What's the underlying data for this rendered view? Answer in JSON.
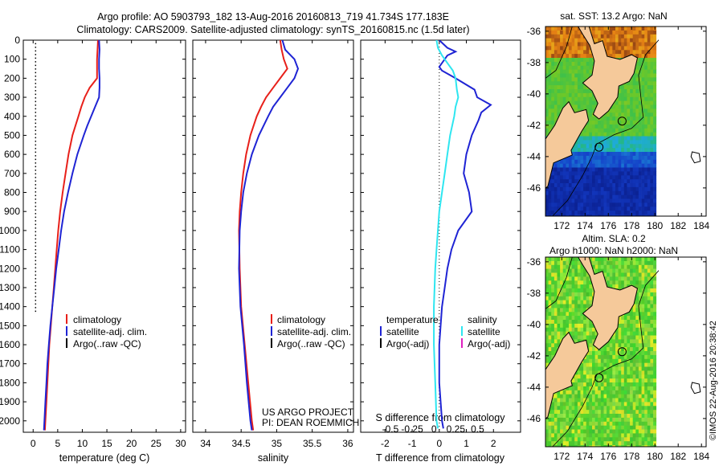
{
  "header": {
    "line1": "Argo profile: AO 5903793_182 13-Aug-2016 20160813_719 41.734S 177.183E",
    "line2": "Climatology: CARS2009. Satellite-adjusted climatology: synTS_20160815.nc (1.5d later)"
  },
  "colors": {
    "climatology": "#e8201a",
    "satellite": "#1f24d4",
    "argo": "#000000",
    "satellite_s": "#2ee6f0",
    "argo_adj_s": "#e020c0"
  },
  "chart_data": [
    {
      "id": "temperature",
      "type": "line",
      "xlabel": "temperature (deg C)",
      "ylabel": "",
      "xlim": [
        -2,
        31
      ],
      "ylim": [
        2060,
        0
      ],
      "xticks": [
        0,
        5,
        10,
        15,
        20,
        25,
        30
      ],
      "yticks": [
        0,
        100,
        200,
        300,
        400,
        500,
        600,
        700,
        800,
        900,
        1000,
        1100,
        1200,
        1300,
        1400,
        1500,
        1600,
        1700,
        1800,
        1900,
        2000
      ],
      "legend": [
        "climatology",
        "satellite-adj. clim.",
        "Argo(..raw -QC)"
      ],
      "series": [
        {
          "name": "climatology",
          "color": "#e8201a",
          "depth": [
            0,
            50,
            100,
            150,
            200,
            250,
            300,
            350,
            400,
            450,
            500,
            600,
            700,
            800,
            900,
            1000,
            1100,
            1200,
            1300,
            1400,
            1500,
            1600,
            1700,
            1800,
            1900,
            2000,
            2050
          ],
          "values": [
            13.2,
            13.1,
            13.0,
            13.0,
            13.0,
            11.5,
            10.5,
            9.8,
            9.2,
            8.6,
            8.0,
            7.2,
            6.6,
            6.0,
            5.5,
            5.1,
            4.8,
            4.5,
            4.2,
            3.9,
            3.6,
            3.3,
            3.1,
            2.9,
            2.7,
            2.5,
            2.4
          ]
        },
        {
          "name": "satellite-adj. clim.",
          "color": "#1f24d4",
          "depth": [
            0,
            50,
            100,
            150,
            200,
            250,
            300,
            350,
            400,
            450,
            500,
            600,
            700,
            800,
            900,
            1000,
            1100,
            1200,
            1300,
            1400,
            1500,
            1600,
            1700,
            1800,
            1900,
            2000,
            2050
          ],
          "values": [
            13.4,
            13.5,
            13.4,
            13.4,
            13.5,
            13.5,
            13.4,
            12.6,
            11.8,
            11.0,
            10.3,
            9.0,
            8.0,
            7.1,
            6.3,
            5.7,
            5.2,
            4.7,
            4.3,
            3.9,
            3.5,
            3.2,
            2.9,
            2.7,
            2.5,
            2.3,
            2.2
          ]
        },
        {
          "name": "Argo(..raw -QC)",
          "color": "#000000",
          "style": "dotted",
          "depth": [
            15,
            1440
          ],
          "values": [
            0.5,
            0.5
          ]
        }
      ]
    },
    {
      "id": "salinity",
      "type": "line",
      "xlabel": "salinity",
      "ylabel": "",
      "xlim": [
        33.82,
        36.08
      ],
      "ylim": [
        2060,
        0
      ],
      "xticks": [
        34,
        34.5,
        35,
        35.5,
        36
      ],
      "legend": [
        "climatology",
        "satellite-adj. clim.",
        "Argo(..raw -QC)"
      ],
      "annotations": [
        "US ARGO PROJECT",
        "PI: DEAN ROEMMICH"
      ],
      "series": [
        {
          "name": "climatology",
          "color": "#e8201a",
          "depth": [
            0,
            50,
            100,
            150,
            200,
            250,
            300,
            350,
            400,
            500,
            600,
            700,
            800,
            900,
            1000,
            1200,
            1400,
            1600,
            1800,
            2000,
            2050
          ],
          "values": [
            35.05,
            35.07,
            35.1,
            35.15,
            35.05,
            34.95,
            34.85,
            34.78,
            34.72,
            34.63,
            34.57,
            34.53,
            34.5,
            34.48,
            34.47,
            34.48,
            34.5,
            34.55,
            34.6,
            34.65,
            34.67
          ]
        },
        {
          "name": "satellite-adj. clim.",
          "color": "#1f24d4",
          "depth": [
            0,
            50,
            100,
            150,
            200,
            250,
            300,
            350,
            400,
            500,
            600,
            700,
            800,
            900,
            1000,
            1200,
            1400,
            1600,
            1800,
            2000,
            2050
          ],
          "values": [
            35.08,
            35.12,
            35.25,
            35.3,
            35.25,
            35.15,
            35.05,
            34.95,
            34.88,
            34.75,
            34.65,
            34.58,
            34.53,
            34.5,
            34.48,
            34.47,
            34.49,
            34.54,
            34.58,
            34.63,
            34.65
          ]
        }
      ]
    },
    {
      "id": "difference",
      "type": "line",
      "xlabel": "T difference from climatology",
      "ylabel": "",
      "top_axis_label": "S difference from climatology",
      "xlim": [
        -2.9,
        3.0
      ],
      "ylim": [
        2060,
        0
      ],
      "xticks": [
        -2,
        -1,
        0,
        1,
        2
      ],
      "top_ticks": [
        {
          "value": -0.5,
          "label": "-0.5"
        },
        {
          "value": -0.25,
          "label": "-0.25"
        },
        {
          "value": 0,
          "label": "0"
        },
        {
          "value": 0.25,
          "label": "0.25"
        },
        {
          "value": 0.5,
          "label": "0.5"
        }
      ],
      "legend_left_title": "temperature",
      "legend_right_title": "salinity",
      "legend_left": [
        "satellite",
        "Argo(-adj)"
      ],
      "legend_right": [
        "satellite",
        "Argo(-adj)"
      ],
      "series": [
        {
          "name": "satellite",
          "quantity": "temperature",
          "color": "#1f24d4",
          "depth": [
            0,
            40,
            60,
            80,
            100,
            140,
            160,
            200,
            260,
            300,
            340,
            380,
            420,
            500,
            600,
            700,
            800,
            900,
            1000,
            1100,
            1200,
            1300,
            1400,
            1500,
            1600,
            1700,
            1800,
            1900,
            2000,
            2040
          ],
          "values": [
            0.0,
            0.3,
            0.6,
            0.3,
            0.2,
            0.0,
            0.1,
            0.6,
            1.3,
            1.4,
            1.9,
            1.55,
            1.45,
            1.2,
            1.0,
            0.9,
            1.1,
            1.2,
            0.7,
            0.45,
            0.3,
            0.2,
            0.1,
            0.05,
            0.0,
            0.0,
            0.0,
            0.05,
            0.1,
            0.15
          ]
        },
        {
          "name": "satellite",
          "quantity": "salinity (plotted in T units)",
          "color": "#2ee6f0",
          "depth": [
            0,
            40,
            80,
            120,
            160,
            200,
            260,
            300,
            350,
            400,
            500,
            600,
            700,
            800,
            900,
            1000,
            1100,
            1200,
            1400,
            1600,
            1800,
            2000,
            2040
          ],
          "values": [
            -0.1,
            -0.05,
            0.1,
            0.3,
            0.5,
            0.6,
            0.65,
            0.7,
            0.6,
            0.55,
            0.4,
            0.3,
            0.2,
            0.1,
            0.0,
            -0.05,
            -0.1,
            -0.15,
            -0.2,
            -0.2,
            -0.15,
            -0.1,
            -0.05
          ]
        }
      ]
    },
    {
      "id": "sst_map",
      "type": "heatmap",
      "title": "sat. SST: 13.2 Argo: NaN",
      "xticks": [
        172,
        174,
        176,
        178,
        180,
        182,
        184
      ],
      "yticks": [
        -36,
        -38,
        -40,
        -42,
        -44,
        -46
      ],
      "xlim": [
        170.6,
        184.4
      ],
      "ylim": [
        -47.8,
        -35.7
      ],
      "data_xlim": [
        170.6,
        180
      ],
      "argo_position": {
        "lon": 177.183,
        "lat": -41.734
      }
    },
    {
      "id": "sla_map",
      "type": "heatmap",
      "title_line1": "Altim. SLA: 0.2",
      "title_line2": "Argo h1000: NaN h2000: NaN",
      "xticks": [
        172,
        174,
        176,
        178,
        180,
        182,
        184
      ],
      "yticks": [
        -36,
        -38,
        -40,
        -42,
        -44,
        -46
      ],
      "xlim": [
        170.6,
        184.4
      ],
      "ylim": [
        -47.8,
        -35.7
      ],
      "data_xlim": [
        170.6,
        180
      ],
      "argo_position": {
        "lon": 177.183,
        "lat": -41.734
      }
    }
  ],
  "credit": "©IMOS 22-Aug-2016 20:38:42"
}
